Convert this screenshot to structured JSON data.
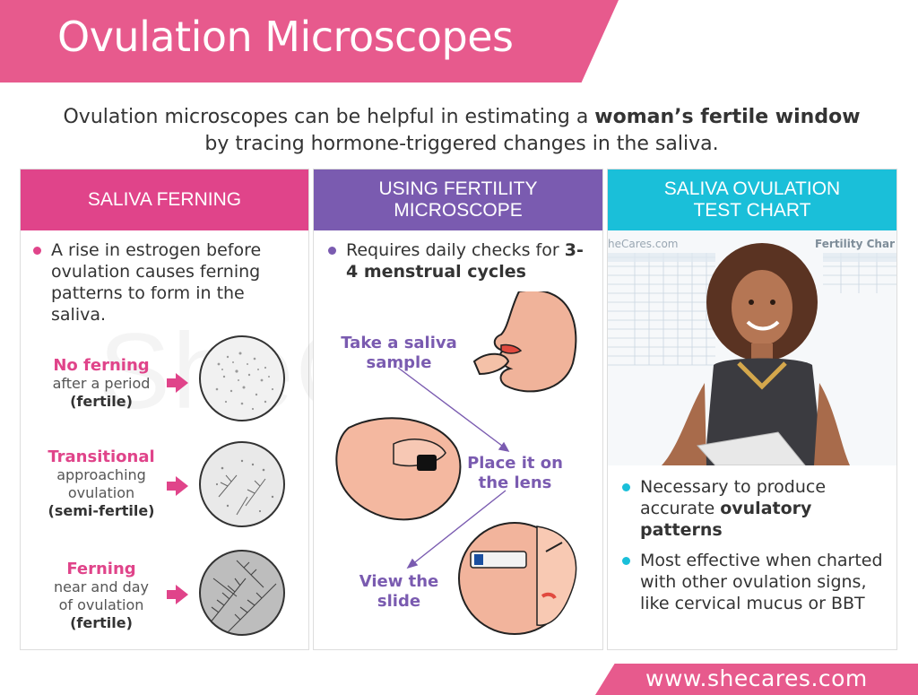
{
  "header": {
    "title": "Ovulation Microscopes"
  },
  "intro": {
    "text_before": "Ovulation microscopes can be helpful in estimating a ",
    "bold": "woman’s fertile window",
    "text_after": " by tracing hormone-triggered changes in the saliva."
  },
  "columns": {
    "saliva_ferning": {
      "heading": "SALIVA FERNING",
      "bullet": "A rise in estrogen before ovulation causes ferning patterns to form in the saliva.",
      "stages": [
        {
          "name": "No ferning",
          "desc": "after a period",
          "fertility": "(fertile)"
        },
        {
          "name": "Transitional",
          "desc": "approaching ovulation",
          "fertility": "(semi-fertile)"
        },
        {
          "name": "Ferning",
          "desc": "near and day of ovulation",
          "fertility": "(fertile)"
        }
      ]
    },
    "fertility_microscope": {
      "heading_line1": "USING FERTILITY",
      "heading_line2": "MICROSCOPE",
      "bullet_text": "Requires daily checks for ",
      "bullet_bold": "3-4 menstrual cycles",
      "steps": [
        {
          "label_line1": "Take a saliva",
          "label_line2": "sample"
        },
        {
          "label_line1": "Place it on",
          "label_line2": "the lens"
        },
        {
          "label_line1": "View the",
          "label_line2": "slide"
        }
      ]
    },
    "test_chart": {
      "heading_line1": "SALIVA OVULATION",
      "heading_line2": "TEST CHART",
      "chart_left_text": "heCares.com",
      "chart_right_text": "Fertility Char",
      "bullets": [
        {
          "text": "Necessary to produce accurate ",
          "bold": "ovulatory patterns"
        },
        {
          "text": "Most effective when charted with other ovulation signs, like cervical mucus or BBT",
          "bold": ""
        }
      ]
    }
  },
  "watermark": "SheCare",
  "footer": {
    "url": "www.shecares.com"
  },
  "colors": {
    "pink": "#e0448a",
    "purple": "#7a5bb0",
    "cyan": "#1abfd9",
    "banner": "#e75a8d"
  }
}
